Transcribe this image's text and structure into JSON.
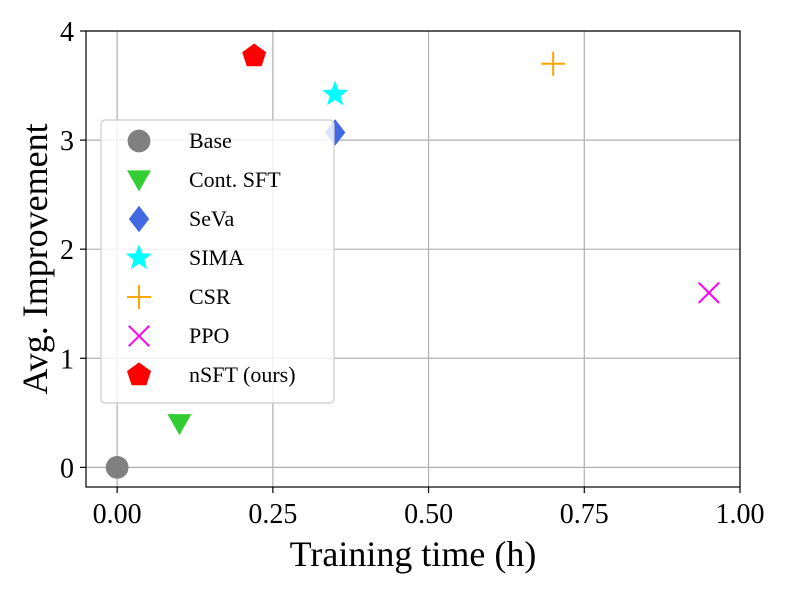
{
  "chart_data": {
    "type": "scatter",
    "title": "",
    "xlabel": "Training time (h)",
    "ylabel": "Avg. Improvement",
    "xlim": [
      -0.05,
      1.0
    ],
    "ylim": [
      -0.18,
      4.0
    ],
    "grid": true,
    "xticks": [
      0.0,
      0.25,
      0.5,
      0.75,
      1.0
    ],
    "xtick_labels": [
      "0.00",
      "0.25",
      "0.50",
      "0.75",
      "1.00"
    ],
    "yticks": [
      0,
      1,
      2,
      3,
      4
    ],
    "ytick_labels": [
      "0",
      "1",
      "2",
      "3",
      "4"
    ],
    "legend_position": "center-left",
    "series": [
      {
        "name": "Base",
        "marker": "circle",
        "color": "#808080",
        "x": 0.0,
        "y": 0.0
      },
      {
        "name": "Cont. SFT",
        "marker": "triangle-down",
        "color": "#32cd32",
        "x": 0.1,
        "y": 0.4
      },
      {
        "name": "SeVa",
        "marker": "diamond",
        "color": "#4169e1",
        "x": 0.35,
        "y": 3.07
      },
      {
        "name": "SIMA",
        "marker": "star",
        "color": "#00ffff",
        "x": 0.35,
        "y": 3.42
      },
      {
        "name": "CSR",
        "marker": "plus",
        "color": "#ffa500",
        "x": 0.7,
        "y": 3.7
      },
      {
        "name": "PPO",
        "marker": "x",
        "color": "#ff00ff",
        "x": 0.95,
        "y": 1.6
      },
      {
        "name": "nSFT (ours)",
        "marker": "pentagon",
        "color": "#ff0000",
        "x": 0.22,
        "y": 3.77
      }
    ]
  }
}
